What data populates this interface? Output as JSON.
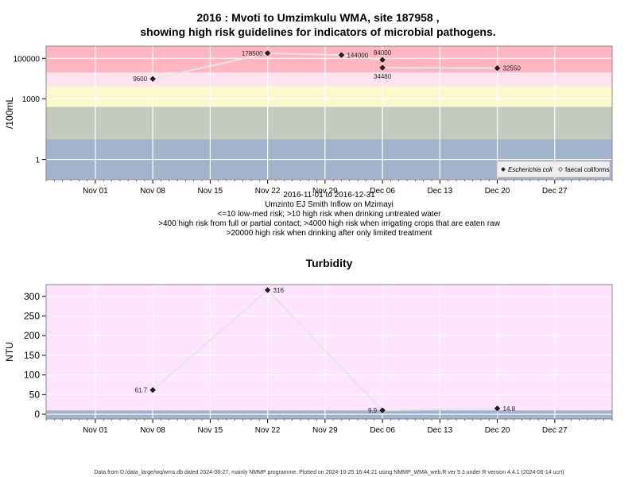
{
  "title": {
    "line1": "2016 : Mvoti to Umzimkulu WMA, site 187958 ,",
    "line2": "showing high risk guidelines for indicators of microbial pathogens."
  },
  "notes": {
    "date_range": "2016-11-01 to 2016-12-31",
    "site_name": "Umzinto EJ Smith Inflow on Mzimayi",
    "risk_lines": [
      "<=10 low-med risk; >10 high risk when drinking untreated water",
      ">400 high risk from full or partial contact; >4000 high risk when irrigating crops that are eaten raw",
      ">20000 high risk when drinking after only limited treatment"
    ]
  },
  "footer": "Data from D:/data_large/wq/wms.db dated 2024-08-27, mainly NMMP programme. Plotted on 2024-10-25 16:44:21 using NMMP_WMA_web.R ver 9.3 under R version 4.4.1 (2024-06-14 ucrt)",
  "colors": {
    "band_low": "#a2b3cc",
    "band_10_400": "#c3cbbe",
    "band_400_4000": "#fff8cc",
    "band_4000_20000": "#ffe4f0",
    "band_high": "#ffb6c1",
    "turbidity_bg": "#ffe4ff",
    "line": "#e6e6e6",
    "grid": "#ffffff"
  },
  "chart_data": [
    {
      "type": "line",
      "title": "",
      "xlabel": "",
      "ylabel": "/100mL",
      "y_scale": "log10",
      "ylim": [
        0.1,
        400000
      ],
      "xlim": [
        "2016-10-26",
        "2017-01-03"
      ],
      "x_ticks": [
        "Nov 01",
        "Nov 08",
        "Nov 15",
        "Nov 22",
        "Nov 29",
        "Dec 06",
        "Dec 13",
        "Dec 20",
        "Dec 27"
      ],
      "x_tick_dates": [
        "2016-11-01",
        "2016-11-08",
        "2016-11-15",
        "2016-11-22",
        "2016-11-29",
        "2016-12-06",
        "2016-12-13",
        "2016-12-20",
        "2016-12-27"
      ],
      "y_ticks": [
        1,
        1000,
        100000
      ],
      "y_tick_labels": [
        "1",
        "1000",
        "100000"
      ],
      "risk_bands": [
        {
          "from": 0.1,
          "to": 10,
          "color": "#a2b3cc"
        },
        {
          "from": 10,
          "to": 400,
          "color": "#c3cbbe"
        },
        {
          "from": 400,
          "to": 4000,
          "color": "#fff8cc"
        },
        {
          "from": 4000,
          "to": 20000,
          "color": "#ffe4f0"
        },
        {
          "from": 20000,
          "to": 400000,
          "color": "#ffb6c1"
        }
      ],
      "legend": {
        "position": "bottom-right",
        "entries": [
          {
            "label": "Escherichia coli",
            "marker": "filled-diamond"
          },
          {
            "label": "faecal coliforms",
            "marker": "open-diamond"
          }
        ]
      },
      "series": [
        {
          "name": "Escherichia coli",
          "points": [
            {
              "x": "2016-11-08",
              "y": 9600,
              "label": "9600"
            },
            {
              "x": "2016-11-22",
              "y": 178500,
              "label": "178500"
            },
            {
              "x": "2016-12-01",
              "y": 144000,
              "label": "144000"
            },
            {
              "x": "2016-12-06",
              "y": 84000,
              "label": "84000"
            },
            {
              "x": "2016-12-06",
              "y": 34480,
              "label": "34480"
            },
            {
              "x": "2016-12-20",
              "y": 32550,
              "label": "32550"
            }
          ]
        }
      ]
    },
    {
      "type": "line",
      "title": "Turbidity",
      "xlabel": "",
      "ylabel": "NTU",
      "ylim": [
        -12,
        330
      ],
      "xlim": [
        "2016-10-26",
        "2017-01-03"
      ],
      "x_ticks": [
        "Nov 01",
        "Nov 08",
        "Nov 15",
        "Nov 22",
        "Nov 29",
        "Dec 06",
        "Dec 13",
        "Dec 20",
        "Dec 27"
      ],
      "x_tick_dates": [
        "2016-11-01",
        "2016-11-08",
        "2016-11-15",
        "2016-11-22",
        "2016-11-29",
        "2016-12-06",
        "2016-12-13",
        "2016-12-20",
        "2016-12-27"
      ],
      "y_ticks": [
        0,
        50,
        100,
        150,
        200,
        250,
        300
      ],
      "y_tick_labels": [
        "0",
        "50",
        "100",
        "150",
        "200",
        "250",
        "300"
      ],
      "risk_bands": [
        {
          "from": -12,
          "to": 10,
          "color": "#a2b3cc"
        },
        {
          "from": 10,
          "to": 330,
          "color": "#ffe4ff"
        }
      ],
      "series": [
        {
          "name": "",
          "points": [
            {
              "x": "2016-11-08",
              "y": 61.7,
              "label": "61.7"
            },
            {
              "x": "2016-11-22",
              "y": 316,
              "label": "316"
            },
            {
              "x": "2016-12-06",
              "y": 9.9,
              "label": "9.9"
            },
            {
              "x": "2016-12-20",
              "y": 14.8,
              "label": "14.8"
            }
          ]
        }
      ]
    }
  ]
}
